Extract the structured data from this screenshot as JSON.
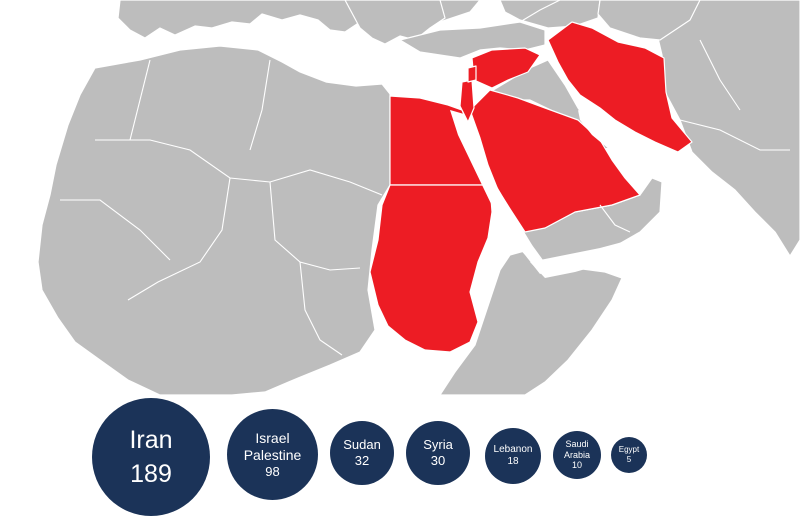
{
  "map": {
    "highlight_color": "#ed1c24",
    "land_color": "#bdbdbd",
    "highlighted_countries": [
      "Iran",
      "Saudi Arabia",
      "Egypt",
      "Sudan",
      "Syria",
      "Israel",
      "Palestine",
      "Lebanon"
    ]
  },
  "bubble_color": "#1b3358",
  "bubbles": [
    {
      "name": "Iran",
      "value": "189"
    },
    {
      "name": "Israel",
      "name2": "Palestine",
      "value": "98"
    },
    {
      "name": "Sudan",
      "value": "32"
    },
    {
      "name": "Syria",
      "value": "30"
    },
    {
      "name": "Lebanon",
      "value": "18"
    },
    {
      "name": "Saudi",
      "name2": "Arabia",
      "value": "10"
    },
    {
      "name": "Egypt",
      "value": "5"
    }
  ]
}
